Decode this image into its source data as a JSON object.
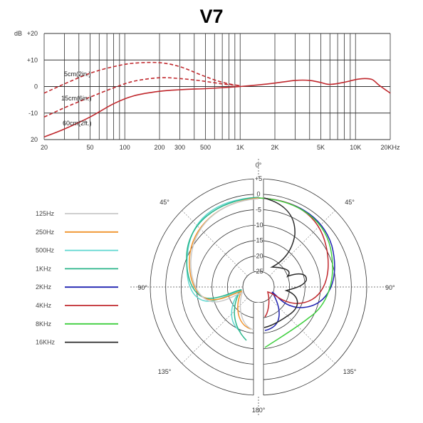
{
  "chart_data": [
    {
      "type": "line",
      "title": "V7",
      "x_scale": "log",
      "xlim": [
        20,
        20000
      ],
      "ylim": [
        -20,
        20
      ],
      "y_unit": "dB",
      "y_ticks": [
        "+20",
        "+10",
        "0",
        "-10",
        "20"
      ],
      "x_ticks": [
        {
          "value": 20,
          "label": "20"
        },
        {
          "value": 50,
          "label": "50"
        },
        {
          "value": 100,
          "label": "100"
        },
        {
          "value": 200,
          "label": "200"
        },
        {
          "value": 300,
          "label": "300"
        },
        {
          "value": 500,
          "label": "500"
        },
        {
          "value": 1000,
          "label": "1K"
        },
        {
          "value": 2000,
          "label": "2K"
        },
        {
          "value": 5000,
          "label": "5K"
        },
        {
          "value": 10000,
          "label": "10K"
        },
        {
          "value": 20000,
          "label": "20KHz"
        }
      ],
      "grid": true,
      "series": [
        {
          "name": "5cm(2in.)",
          "color": "#c0282d",
          "dash": true,
          "x": [
            20,
            30,
            50,
            80,
            120,
            200,
            300,
            450,
            600,
            800,
            1000
          ],
          "y": [
            -2.5,
            1,
            5,
            7.5,
            8.8,
            9,
            7.5,
            4.5,
            2.5,
            1,
            0.3
          ]
        },
        {
          "name": "15cm(6in.)",
          "color": "#c0282d",
          "dash": true,
          "x": [
            20,
            30,
            50,
            80,
            120,
            200,
            300,
            450,
            700,
            1000
          ],
          "y": [
            -11.5,
            -8,
            -4,
            -0.5,
            2,
            3.3,
            3,
            2.2,
            1,
            0.3
          ]
        },
        {
          "name": "60cm(2ft.)",
          "color": "#c0282d",
          "dash": false,
          "x": [
            20,
            30,
            50,
            80,
            120,
            200,
            300,
            500,
            800,
            1000,
            1500,
            2000,
            3000,
            4000,
            5000,
            6000,
            8000,
            10000,
            12000,
            14000,
            16000,
            20000
          ],
          "y": [
            -19,
            -16,
            -11.5,
            -6.5,
            -3.5,
            -1.8,
            -1.2,
            -0.8,
            -0.3,
            0,
            0.7,
            1.3,
            2.3,
            2.3,
            1.5,
            0.8,
            1.6,
            2.6,
            3,
            2.6,
            0.5,
            -2.5
          ]
        }
      ]
    },
    {
      "type": "polar",
      "r_ticks": [
        "+5",
        "0",
        "-5",
        "-10",
        "-15",
        "-20",
        "-25"
      ],
      "angle_labels": {
        "top": "0°",
        "right_upper": "45°",
        "left_upper": "45°",
        "right": "90°",
        "left": "90°",
        "right_lower": "135°",
        "left_lower": "135°",
        "bottom": "180°"
      },
      "series": [
        {
          "name": "125Hz",
          "color": "#c8c8c8"
        },
        {
          "name": "250Hz",
          "color": "#f0932b"
        },
        {
          "name": "500Hz",
          "color": "#5fd7d0"
        },
        {
          "name": "1KHz",
          "color": "#2bb58a"
        },
        {
          "name": "2KHz",
          "color": "#1f22b0"
        },
        {
          "name": "4KHz",
          "color": "#c0282d"
        },
        {
          "name": "8KHz",
          "color": "#3fcf3f"
        },
        {
          "name": "16KHz",
          "color": "#2a2a2a"
        }
      ]
    }
  ]
}
